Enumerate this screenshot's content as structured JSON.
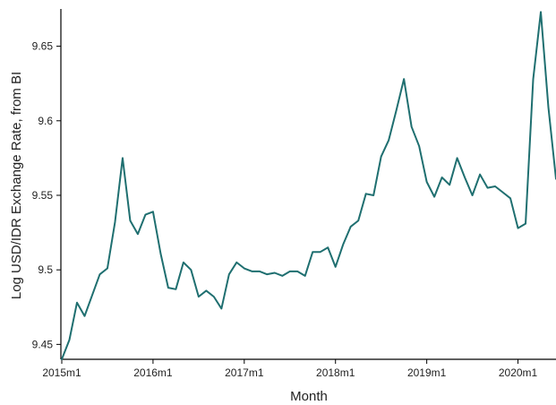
{
  "chart_data": {
    "type": "line",
    "title": "",
    "xlabel": "Month",
    "ylabel": "Log USD/IDR Exchange Rate, from BI",
    "ylim": [
      9.44,
      9.675
    ],
    "y_ticks": [
      9.45,
      9.5,
      9.55,
      9.6,
      9.65
    ],
    "y_tick_labels": [
      "9.45",
      "9.5",
      "9.55",
      "9.6",
      "9.65"
    ],
    "x_ticks": [
      "2015m1",
      "2016m1",
      "2017m1",
      "2018m1",
      "2019m1",
      "2020m1"
    ],
    "xlim": [
      "2015m1",
      "2020m6"
    ],
    "grid": false,
    "line_color": "#1f6f70",
    "series": [
      {
        "name": "",
        "x": [
          "2015m1",
          "2015m2",
          "2015m3",
          "2015m4",
          "2015m5",
          "2015m6",
          "2015m7",
          "2015m8",
          "2015m9",
          "2015m10",
          "2015m11",
          "2015m12",
          "2016m1",
          "2016m2",
          "2016m3",
          "2016m4",
          "2016m5",
          "2016m6",
          "2016m7",
          "2016m8",
          "2016m9",
          "2016m10",
          "2016m11",
          "2016m12",
          "2017m1",
          "2017m2",
          "2017m3",
          "2017m4",
          "2017m5",
          "2017m6",
          "2017m7",
          "2017m8",
          "2017m9",
          "2017m10",
          "2017m11",
          "2017m12",
          "2018m1",
          "2018m2",
          "2018m3",
          "2018m4",
          "2018m5",
          "2018m6",
          "2018m7",
          "2018m8",
          "2018m9",
          "2018m10",
          "2018m11",
          "2018m12",
          "2019m1",
          "2019m2",
          "2019m3",
          "2019m4",
          "2019m5",
          "2019m6",
          "2019m7",
          "2019m8",
          "2019m9",
          "2019m10",
          "2019m11",
          "2019m12",
          "2020m1",
          "2020m2",
          "2020m3",
          "2020m4",
          "2020m5",
          "2020m6"
        ],
        "values": [
          9.44,
          9.453,
          9.478,
          9.469,
          9.483,
          9.497,
          9.501,
          9.532,
          9.575,
          9.533,
          9.524,
          9.537,
          9.539,
          9.511,
          9.488,
          9.487,
          9.505,
          9.5,
          9.482,
          9.486,
          9.482,
          9.474,
          9.497,
          9.505,
          9.501,
          9.499,
          9.499,
          9.497,
          9.498,
          9.496,
          9.499,
          9.499,
          9.496,
          9.512,
          9.512,
          9.515,
          9.502,
          9.517,
          9.529,
          9.533,
          9.551,
          9.55,
          9.576,
          9.587,
          9.607,
          9.628,
          9.596,
          9.583,
          9.559,
          9.549,
          9.562,
          9.557,
          9.575,
          9.562,
          9.55,
          9.564,
          9.555,
          9.556,
          9.552,
          9.548,
          9.528,
          9.531,
          9.628,
          9.673,
          9.609,
          9.561
        ]
      }
    ]
  }
}
